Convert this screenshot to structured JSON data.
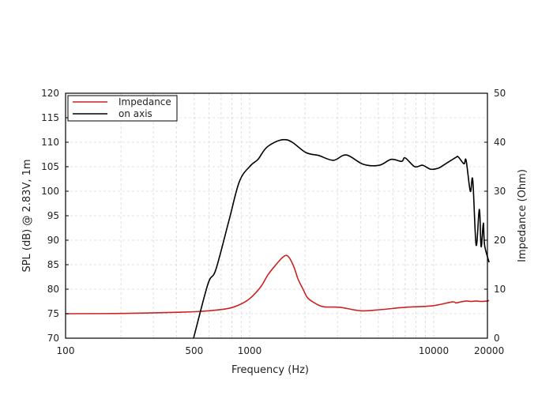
{
  "chart_data": {
    "type": "line",
    "title": "",
    "xlabel": "Frequency (Hz)",
    "ylabel": "SPL (dB) @ 2.83V, 1m",
    "ylabel_right": "Impedance (Ohm)",
    "xscale": "log",
    "xlim": [
      100,
      20000
    ],
    "ylim": [
      70,
      120
    ],
    "ylim_right": [
      0,
      50
    ],
    "x_ticks": [
      100,
      500,
      1000,
      10000,
      20000
    ],
    "x_tick_labels": [
      "100",
      "500",
      "1000",
      "10000",
      "20000"
    ],
    "y_ticks": [
      70,
      75,
      80,
      85,
      90,
      95,
      100,
      105,
      110,
      115,
      120
    ],
    "y_tick_labels": [
      "70",
      "75",
      "80",
      "85",
      "90",
      "95",
      "100",
      "105",
      "110",
      "115",
      "120"
    ],
    "y_right_ticks": [
      0,
      10,
      20,
      30,
      40,
      50
    ],
    "y_right_tick_labels": [
      "0",
      "10",
      "20",
      "30",
      "40",
      "50"
    ],
    "grid": true,
    "legend_position": "top-left",
    "series": [
      {
        "name": "Impedance",
        "axis": "right",
        "color": "#cc2222",
        "x": [
          100,
          200,
          430,
          600,
          772,
          900,
          1010,
          1150,
          1260,
          1390,
          1500,
          1580,
          1650,
          1750,
          1830,
          1950,
          2070,
          2300,
          2530,
          3100,
          4020,
          5060,
          7000,
          9800,
          12600,
          13200,
          14000,
          15000,
          16000,
          17000,
          18000,
          19500,
          20000
        ],
        "y": [
          5.0,
          5.05,
          5.3,
          5.6,
          6.1,
          7.0,
          8.2,
          10.5,
          13.0,
          15.0,
          16.4,
          16.9,
          16.3,
          14.3,
          12.1,
          10.0,
          8.2,
          7.0,
          6.4,
          6.3,
          5.6,
          5.8,
          6.3,
          6.6,
          7.4,
          7.2,
          7.4,
          7.6,
          7.5,
          7.6,
          7.5,
          7.6,
          7.7
        ]
      },
      {
        "name": "on axis",
        "axis": "left",
        "color": "#000000",
        "x": [
          496,
          593,
          655,
          772,
          880,
          1010,
          1110,
          1260,
          1590,
          2020,
          2370,
          2850,
          3350,
          4140,
          5060,
          5870,
          6690,
          7000,
          7890,
          8700,
          9600,
          10580,
          11500,
          13200,
          13600,
          14600,
          15000,
          15800,
          16300,
          17000,
          17700,
          18100,
          18600,
          18900,
          20000
        ],
        "y": [
          70,
          81,
          84,
          94,
          102,
          105.2,
          106.5,
          109.2,
          110.5,
          107.9,
          107.3,
          106.3,
          107.4,
          105.5,
          105.3,
          106.5,
          106.1,
          106.8,
          105.0,
          105.3,
          104.5,
          104.7,
          105.5,
          106.9,
          107,
          105.6,
          106.3,
          100,
          102.3,
          89,
          96.3,
          88.7,
          93.5,
          89,
          85.5
        ]
      }
    ]
  }
}
